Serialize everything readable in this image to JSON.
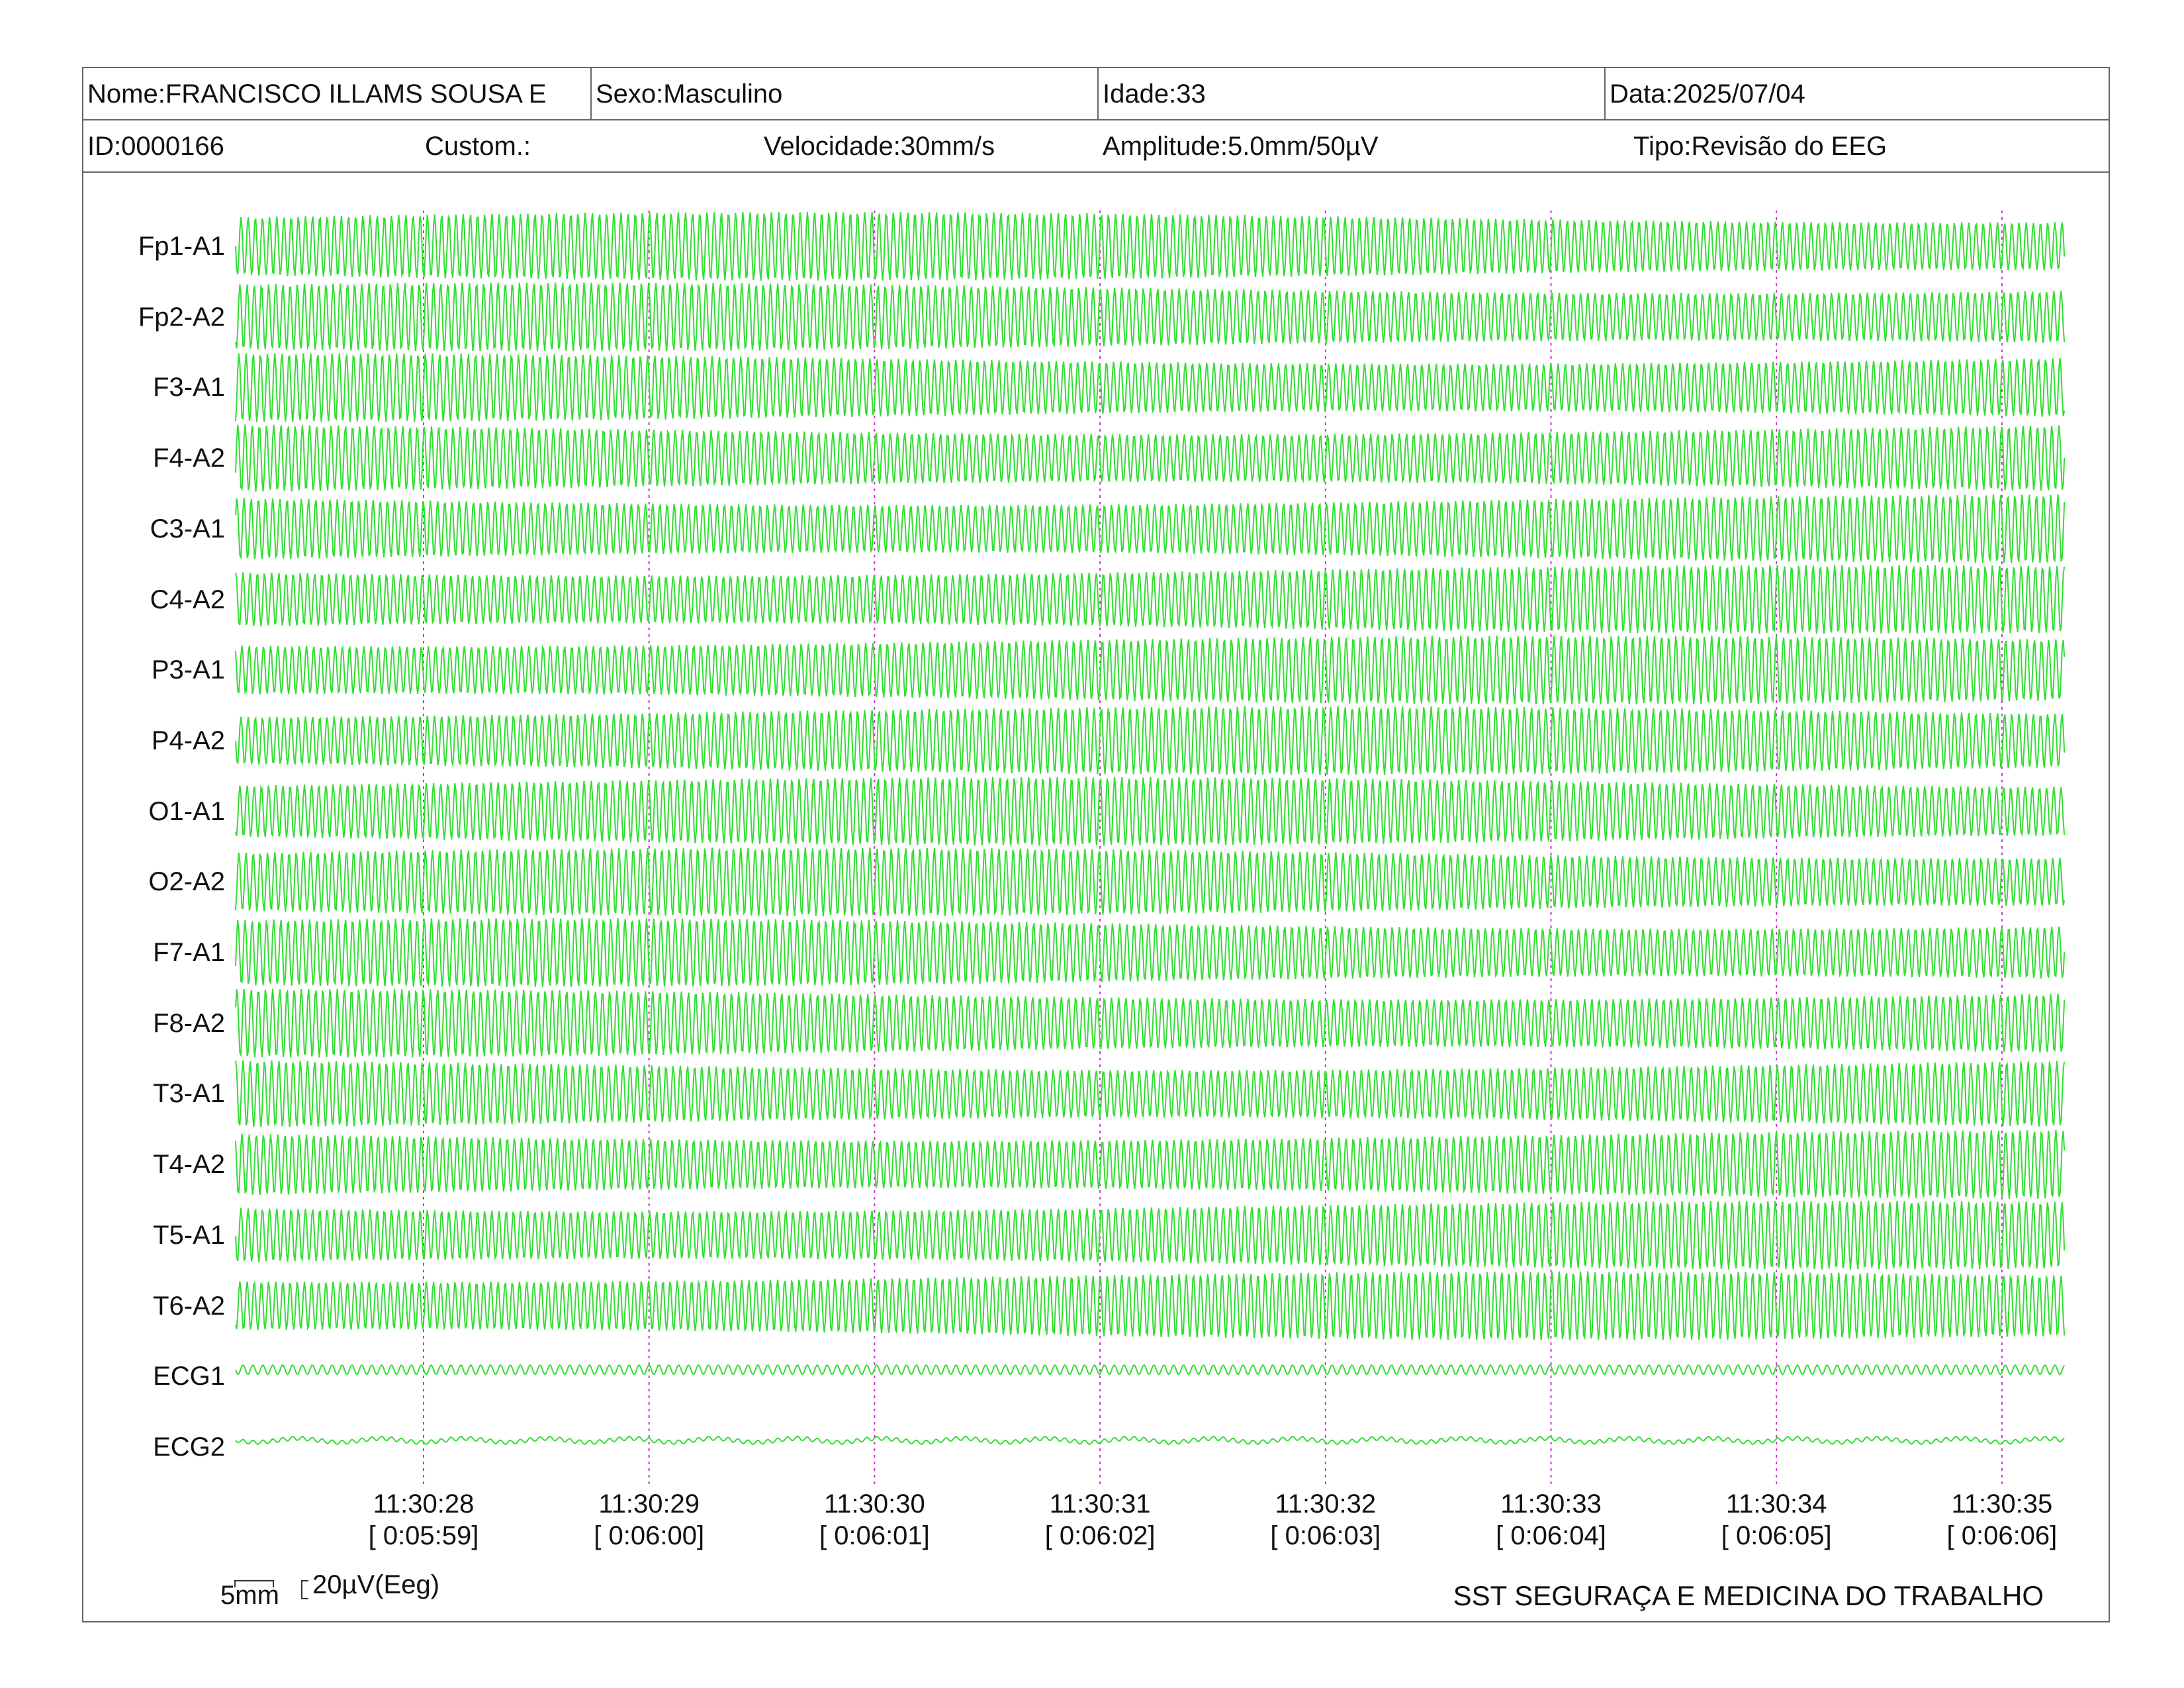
{
  "header": {
    "name": "Nome:FRANCISCO ILLAMS SOUSA E",
    "sex": "Sexo:Masculino",
    "age": "Idade:33",
    "date": "Data:2025/07/04",
    "id": "ID:0000166",
    "custom": "Custom.:",
    "speed": "Velocidade:30mm/s",
    "amplitude": "Amplitude:5.0mm/50µV",
    "type": "Tipo:Revisão do EEG"
  },
  "channels": [
    "Fp1-A1",
    "Fp2-A2",
    "F3-A1",
    "F4-A2",
    "C3-A1",
    "C4-A2",
    "P3-A1",
    "P4-A2",
    "O1-A1",
    "O2-A2",
    "F7-A1",
    "F8-A2",
    "T3-A1",
    "T4-A2",
    "T5-A1",
    "T6-A2",
    "ECG1",
    "ECG2"
  ],
  "time_marks": [
    {
      "clock": "11:30:28",
      "elapsed": "[ 0:05:59]"
    },
    {
      "clock": "11:30:29",
      "elapsed": "[ 0:06:00]"
    },
    {
      "clock": "11:30:30",
      "elapsed": "[ 0:06:01]"
    },
    {
      "clock": "11:30:31",
      "elapsed": "[ 0:06:02]"
    },
    {
      "clock": "11:30:32",
      "elapsed": "[ 0:06:03]"
    },
    {
      "clock": "11:30:33",
      "elapsed": "[ 0:06:04]"
    },
    {
      "clock": "11:30:34",
      "elapsed": "[ 0:06:05]"
    },
    {
      "clock": "11:30:35",
      "elapsed": "[ 0:06:06]"
    }
  ],
  "scale": {
    "time_label": "5mm",
    "amp_label": "20µV(Eeg)"
  },
  "footer": {
    "organization": "SST SEGURAÇA E MEDICINA DO TRABALHO"
  },
  "colors": {
    "trace": "#33dd33",
    "marker": "#cc33cc",
    "border": "#666666"
  }
}
